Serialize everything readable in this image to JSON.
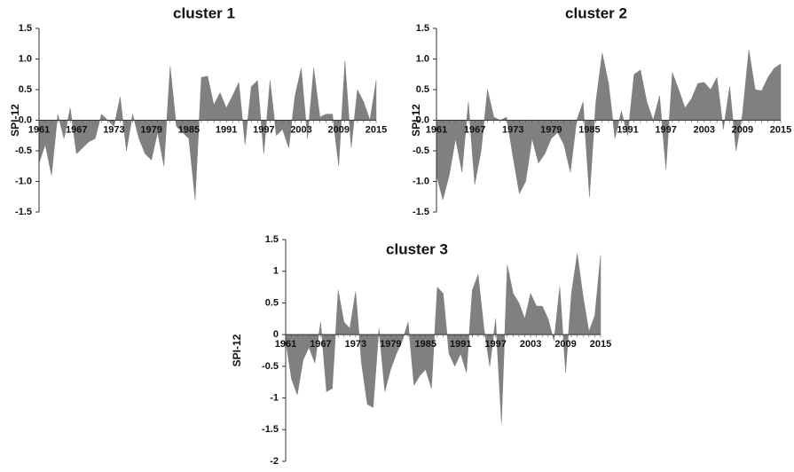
{
  "chart_data": [
    {
      "type": "area",
      "title": "cluster 1",
      "ylabel": "SPI-12",
      "color": "#808080",
      "x": [
        1961,
        1962,
        1963,
        1964,
        1965,
        1966,
        1967,
        1968,
        1969,
        1970,
        1971,
        1972,
        1973,
        1974,
        1975,
        1976,
        1977,
        1978,
        1979,
        1980,
        1981,
        1982,
        1983,
        1984,
        1985,
        1986,
        1987,
        1988,
        1989,
        1990,
        1991,
        1992,
        1993,
        1994,
        1995,
        1996,
        1997,
        1998,
        1999,
        2000,
        2001,
        2002,
        2003,
        2004,
        2005,
        2006,
        2007,
        2008,
        2009,
        2010,
        2011,
        2012,
        2013,
        2014,
        2015
      ],
      "values": [
        -0.7,
        -0.4,
        -0.9,
        0.1,
        -0.3,
        0.2,
        -0.55,
        -0.45,
        -0.35,
        -0.3,
        0.1,
        0.0,
        -0.1,
        0.38,
        -0.5,
        0.1,
        -0.3,
        -0.55,
        -0.65,
        -0.2,
        -0.75,
        0.88,
        -0.1,
        -0.2,
        -0.3,
        -1.3,
        0.7,
        0.72,
        0.25,
        0.45,
        0.2,
        0.4,
        0.62,
        -0.4,
        0.55,
        0.65,
        -0.55,
        0.65,
        -0.25,
        -0.15,
        -0.45,
        0.4,
        0.85,
        -0.3,
        0.85,
        0.05,
        0.1,
        0.1,
        -0.75,
        0.97,
        -0.45,
        0.5,
        0.3,
        0.0,
        0.65
      ],
      "xlim": [
        1961,
        2015
      ],
      "xticks": [
        1961,
        1967,
        1973,
        1979,
        1985,
        1991,
        1997,
        2003,
        2009,
        2015
      ],
      "ylim": [
        -1.5,
        1.5
      ],
      "yticks": [
        1.5,
        {
          "value": 1.0,
          "label": "1.0"
        },
        0.5,
        {
          "value": 0.0,
          "label": "0.0"
        },
        -0.5,
        {
          "value": -1.0,
          "label": "-1.0"
        },
        -1.5
      ]
    },
    {
      "type": "area",
      "title": "cluster 2",
      "ylabel": "SPI-12",
      "color": "#808080",
      "x": [
        1961,
        1962,
        1963,
        1964,
        1965,
        1966,
        1967,
        1968,
        1969,
        1970,
        1971,
        1972,
        1973,
        1974,
        1975,
        1976,
        1977,
        1978,
        1979,
        1980,
        1981,
        1982,
        1983,
        1984,
        1985,
        1986,
        1987,
        1988,
        1989,
        1990,
        1991,
        1992,
        1993,
        1994,
        1995,
        1996,
        1997,
        1998,
        1999,
        2000,
        2001,
        2002,
        2003,
        2004,
        2005,
        2006,
        2007,
        2008,
        2009,
        2010,
        2011,
        2012,
        2013,
        2014,
        2015
      ],
      "values": [
        -0.9,
        -1.3,
        -0.9,
        -0.3,
        -0.85,
        0.3,
        -1.05,
        -0.5,
        0.5,
        0.05,
        0.0,
        0.05,
        -0.6,
        -1.2,
        -1.0,
        -0.3,
        -0.7,
        -0.55,
        -0.3,
        -0.2,
        -0.4,
        -0.85,
        0.0,
        0.3,
        -1.25,
        0.3,
        1.1,
        0.6,
        -0.3,
        0.15,
        -0.25,
        0.75,
        0.82,
        0.3,
        0.0,
        0.4,
        -0.8,
        0.78,
        0.5,
        0.2,
        0.35,
        0.6,
        0.62,
        0.5,
        0.7,
        -0.15,
        0.55,
        -0.5,
        0.1,
        1.15,
        0.5,
        0.48,
        0.7,
        0.85,
        0.92
      ],
      "xlim": [
        1961,
        2015
      ],
      "xticks": [
        1961,
        1967,
        1973,
        1979,
        1985,
        1991,
        1997,
        2003,
        2009,
        2015
      ],
      "ylim": [
        -1.5,
        1.5
      ],
      "yticks": [
        1.5,
        {
          "value": 1.0,
          "label": "1.0"
        },
        0.5,
        {
          "value": 0.0,
          "label": "0.0"
        },
        -0.5,
        {
          "value": -1.0,
          "label": "-1.0"
        },
        -1.5
      ]
    },
    {
      "type": "area",
      "title": "cluster 3",
      "ylabel": "SPI-12",
      "color": "#808080",
      "x": [
        1961,
        1962,
        1963,
        1964,
        1965,
        1966,
        1967,
        1968,
        1969,
        1970,
        1971,
        1972,
        1973,
        1974,
        1975,
        1976,
        1977,
        1978,
        1979,
        1980,
        1981,
        1982,
        1983,
        1984,
        1985,
        1986,
        1987,
        1988,
        1989,
        1990,
        1991,
        1992,
        1993,
        1994,
        1995,
        1996,
        1997,
        1998,
        1999,
        2000,
        2001,
        2002,
        2003,
        2004,
        2005,
        2006,
        2007,
        2008,
        2009,
        2010,
        2011,
        2012,
        2013,
        2014,
        2015
      ],
      "values": [
        -0.1,
        -0.7,
        -0.95,
        -0.4,
        -0.2,
        -0.45,
        0.2,
        -0.9,
        -0.85,
        0.7,
        0.2,
        0.1,
        0.68,
        -0.45,
        -1.1,
        -1.15,
        0.1,
        -0.9,
        -0.55,
        -0.3,
        -0.1,
        0.2,
        -0.8,
        -0.65,
        -0.55,
        -0.85,
        0.75,
        0.65,
        -0.3,
        -0.5,
        -0.3,
        -0.6,
        0.7,
        0.95,
        0.1,
        -0.5,
        0.25,
        -1.4,
        1.1,
        0.65,
        0.5,
        0.25,
        0.65,
        0.45,
        0.45,
        0.25,
        -0.1,
        0.75,
        -0.6,
        0.65,
        1.28,
        0.6,
        0.05,
        0.3,
        1.25
      ],
      "xlim": [
        1961,
        2015
      ],
      "xticks": [
        1961,
        1967,
        1973,
        1979,
        1985,
        1991,
        1997,
        2003,
        2009,
        2015
      ],
      "ylim": [
        -2,
        1.5
      ],
      "yticks": [
        1.5,
        1,
        0.5,
        0,
        -0.5,
        -1,
        -1.5,
        -2
      ]
    }
  ]
}
